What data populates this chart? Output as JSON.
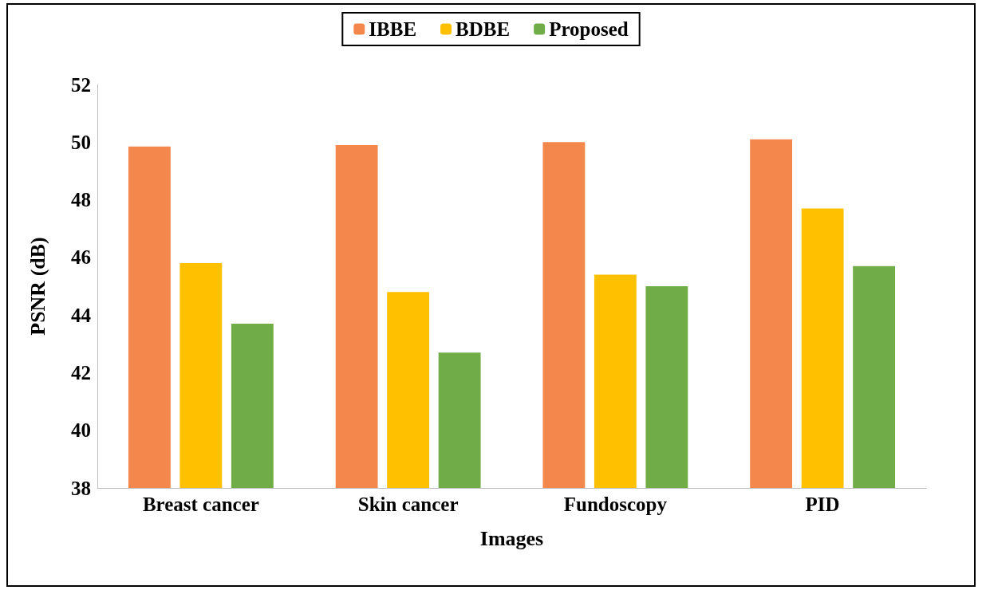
{
  "chart_data": {
    "type": "bar",
    "xlabel": "Images",
    "ylabel": "PSNR (dB)",
    "categories": [
      "Breast cancer",
      "Skin cancer",
      "Fundoscopy",
      "PID"
    ],
    "series": [
      {
        "name": "IBBE",
        "color": "#f4874b",
        "values": [
          49.85,
          49.9,
          50.0,
          50.1
        ]
      },
      {
        "name": "BDBE",
        "color": "#ffc000",
        "values": [
          45.8,
          44.8,
          45.4,
          47.7
        ]
      },
      {
        "name": "Proposed",
        "color": "#70ad47",
        "values": [
          43.7,
          42.7,
          45.0,
          45.7
        ]
      }
    ],
    "ylim": [
      38,
      52
    ],
    "yticks": [
      38,
      40,
      42,
      44,
      46,
      48,
      50,
      52
    ],
    "grid": false,
    "legend": "top"
  }
}
